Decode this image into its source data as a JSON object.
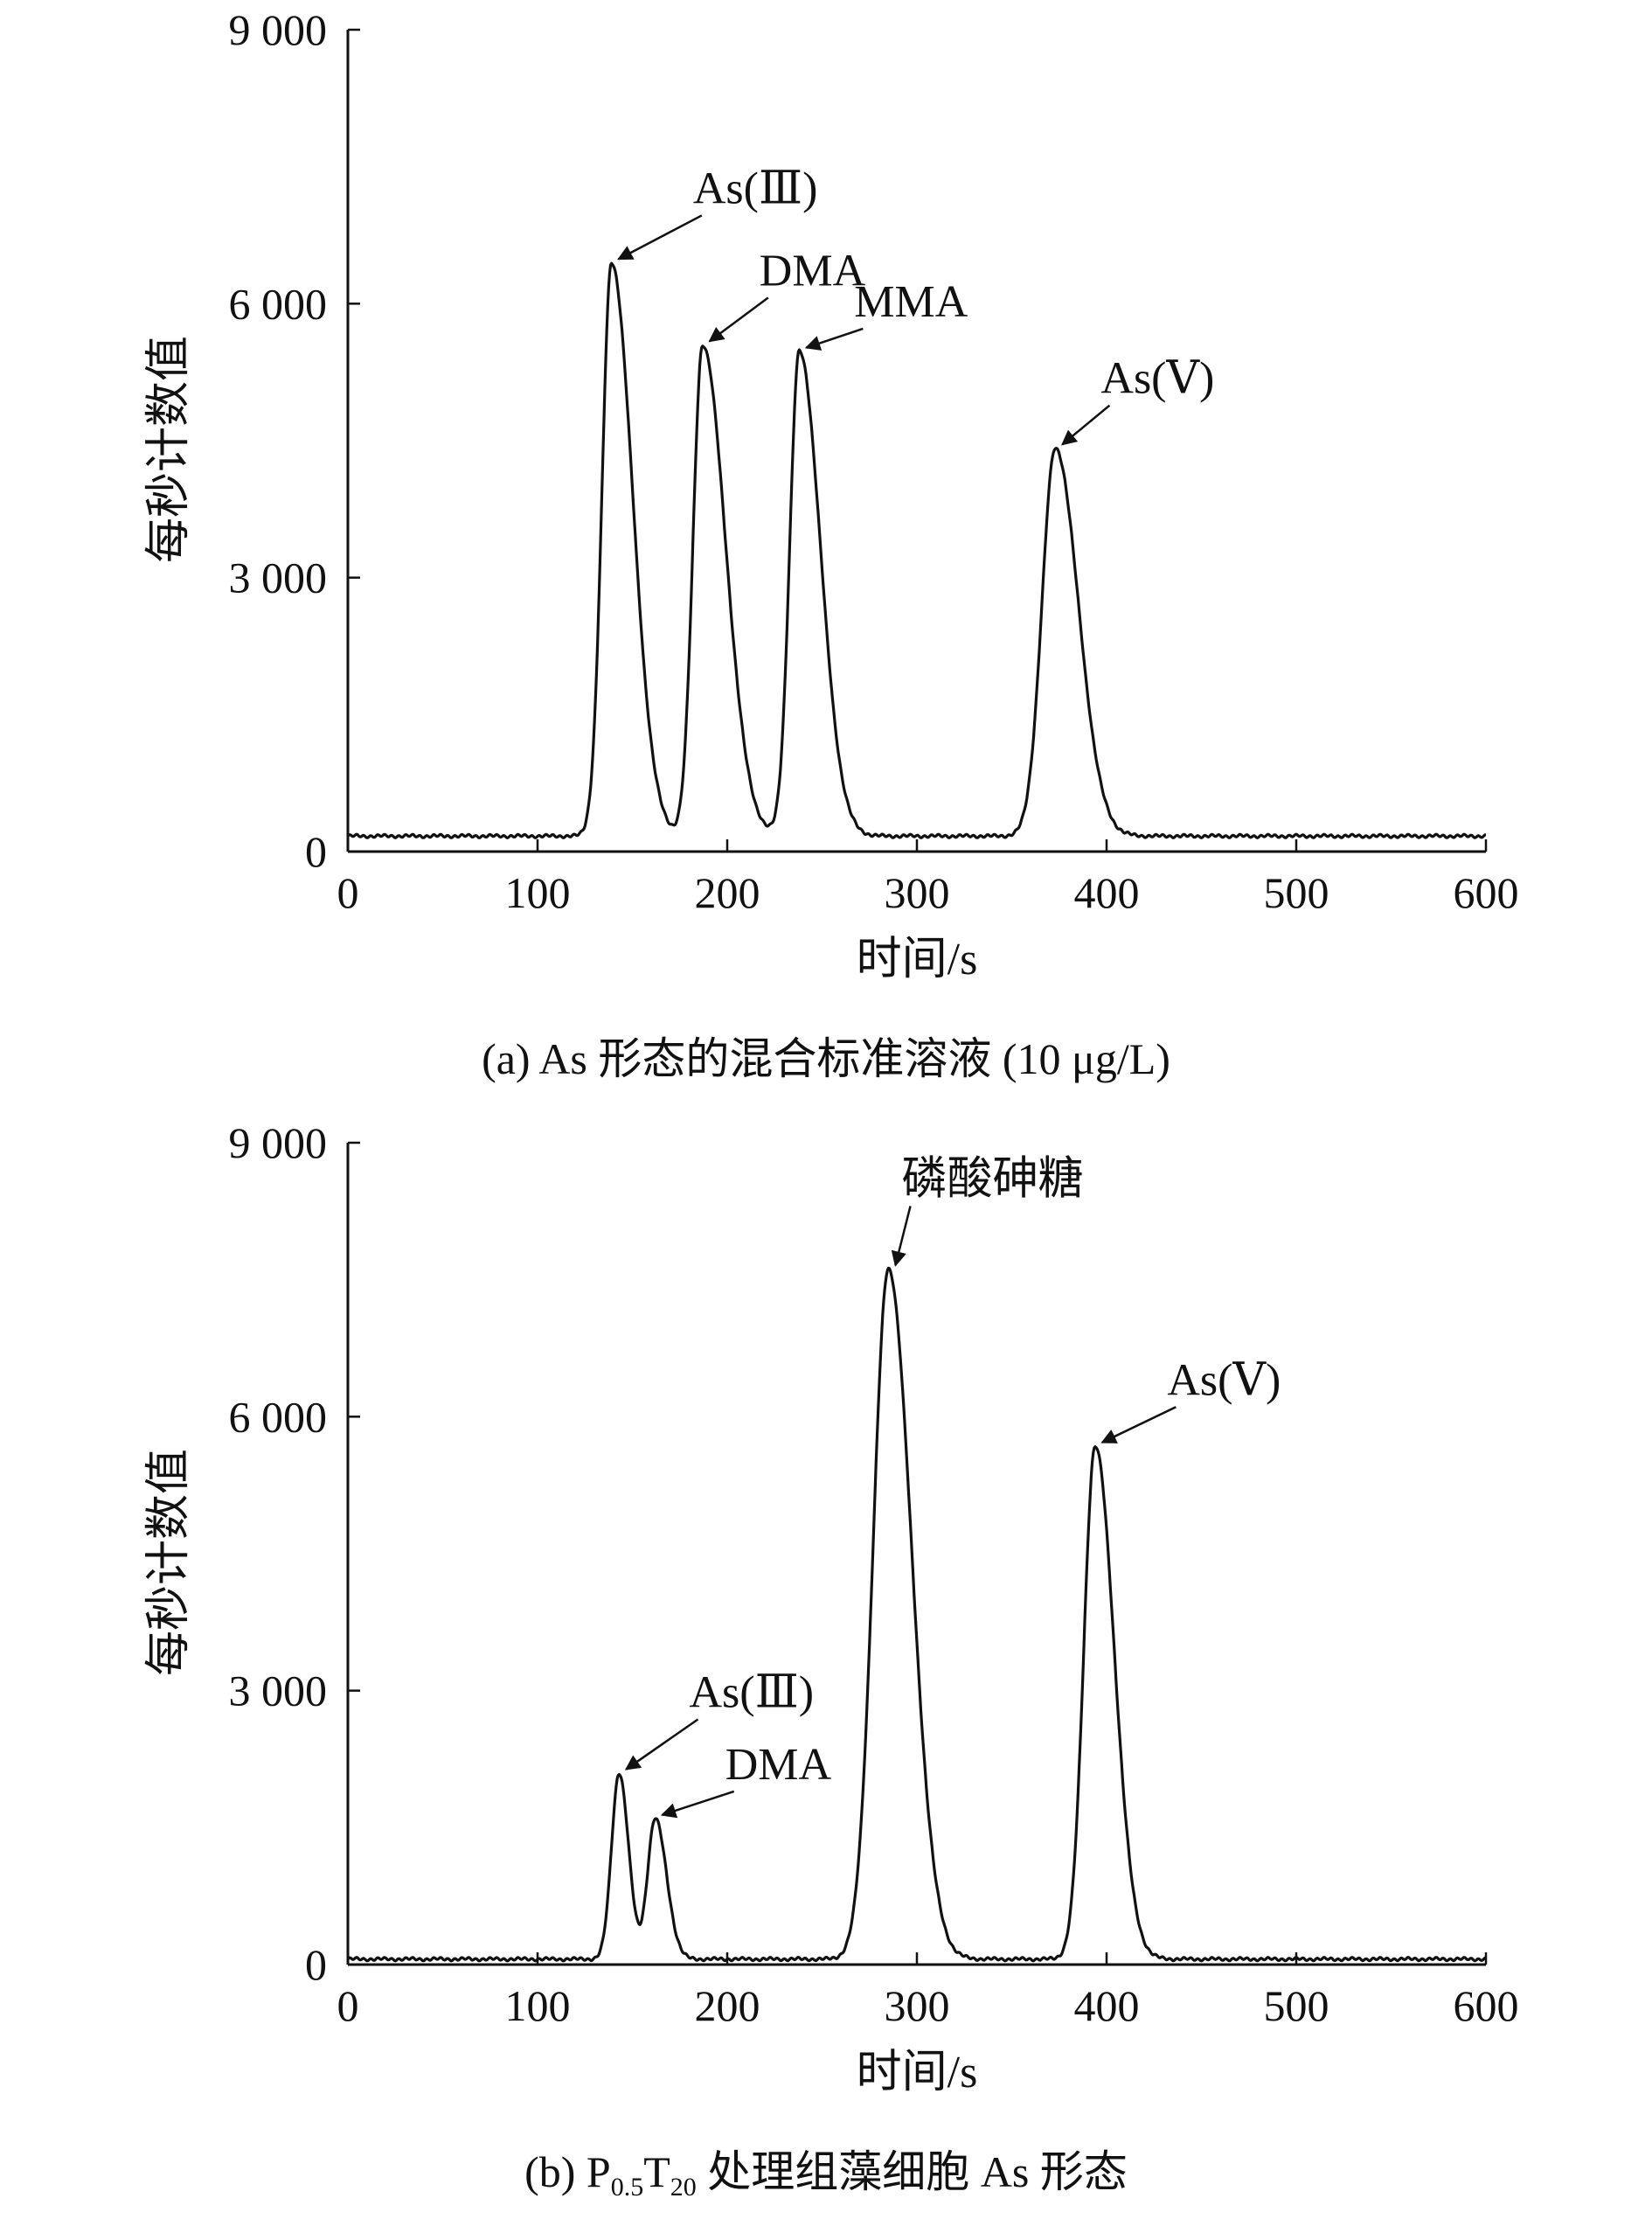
{
  "chart_data": [
    {
      "type": "line",
      "panel_id": "a",
      "caption": "(a) As 形态的混合标准溶液 (10 μg/L)",
      "xlabel": "时间/s",
      "ylabel": "每秒计数值",
      "xlim": [
        0,
        600
      ],
      "ylim": [
        0,
        9000
      ],
      "x_ticks": [
        0,
        100,
        200,
        300,
        400,
        500,
        600
      ],
      "x_tick_labels": [
        "0",
        "100",
        "200",
        "300",
        "400",
        "500",
        "600"
      ],
      "y_ticks": [
        0,
        3000,
        6000,
        9000
      ],
      "y_tick_labels": [
        "0",
        "3 000",
        "6 000",
        "9 000"
      ],
      "grid": false,
      "baseline": 170,
      "peaks": [
        {
          "name": "As(Ⅲ)",
          "x": 139,
          "y": 6450,
          "sigma_left": 5,
          "sigma_right": 11
        },
        {
          "name": "DMA",
          "x": 187,
          "y": 5550,
          "sigma_left": 5,
          "sigma_right": 12
        },
        {
          "name": "MMA",
          "x": 238,
          "y": 5480,
          "sigma_left": 5,
          "sigma_right": 11
        },
        {
          "name": "As(Ⅴ)",
          "x": 373,
          "y": 4420,
          "sigma_left": 7,
          "sigma_right": 12
        }
      ],
      "annotations": [
        {
          "text": "As(Ⅲ)",
          "target_x": 139,
          "target_y": 6450,
          "label_x": 205,
          "label_y": 7100
        },
        {
          "text": "DMA",
          "target_x": 187,
          "target_y": 5550,
          "label_x": 240,
          "label_y": 6200
        },
        {
          "text": "MMA",
          "target_x": 238,
          "target_y": 5480,
          "label_x": 290,
          "label_y": 5860
        },
        {
          "text": "As(Ⅴ)",
          "target_x": 373,
          "target_y": 4420,
          "label_x": 420,
          "label_y": 5020
        }
      ]
    },
    {
      "type": "line",
      "panel_id": "b",
      "caption_parts": {
        "prefix": "(b) P",
        "sub1": "0.5",
        "mid": "T",
        "sub2": "20",
        "suffix": " 处理组藻细胞 As 形态"
      },
      "xlabel": "时间/s",
      "ylabel": "每秒计数值",
      "xlim": [
        0,
        600
      ],
      "ylim": [
        0,
        9000
      ],
      "x_ticks": [
        0,
        100,
        200,
        300,
        400,
        500,
        600
      ],
      "x_tick_labels": [
        "0",
        "100",
        "200",
        "300",
        "400",
        "500",
        "600"
      ],
      "y_ticks": [
        0,
        3000,
        6000,
        9000
      ],
      "y_tick_labels": [
        "0",
        "3 000",
        "6 000",
        "9 000"
      ],
      "grid": false,
      "baseline": 60,
      "peaks": [
        {
          "name": "As(Ⅲ)",
          "x": 143,
          "y": 2100,
          "sigma_left": 4,
          "sigma_right": 5
        },
        {
          "name": "DMA",
          "x": 162,
          "y": 1600,
          "sigma_left": 4,
          "sigma_right": 6
        },
        {
          "name": "磷酸砷糖",
          "x": 285,
          "y": 7620,
          "sigma_left": 8,
          "sigma_right": 12
        },
        {
          "name": "As(Ⅴ)",
          "x": 394,
          "y": 5680,
          "sigma_left": 6,
          "sigma_right": 10
        }
      ],
      "annotations": [
        {
          "text": "As(Ⅲ)",
          "target_x": 143,
          "target_y": 2100,
          "label_x": 203,
          "label_y": 2820
        },
        {
          "text": "DMA",
          "target_x": 162,
          "target_y": 1600,
          "label_x": 222,
          "label_y": 2030
        },
        {
          "text": "磷酸砷糖",
          "target_x": 285,
          "target_y": 7620,
          "label_x": 315,
          "label_y": 8440
        },
        {
          "text": "As(Ⅴ)",
          "target_x": 394,
          "target_y": 5680,
          "label_x": 455,
          "label_y": 6240
        }
      ]
    }
  ]
}
